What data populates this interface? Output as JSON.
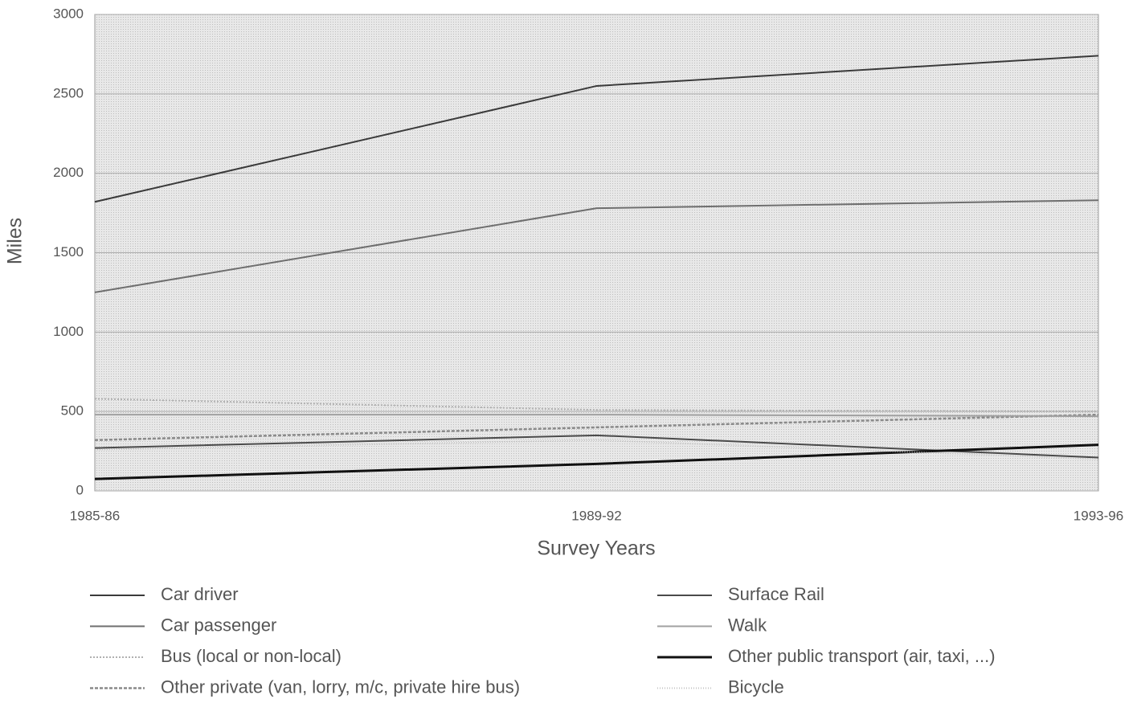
{
  "chart_data": {
    "type": "line",
    "x_label": "Survey Years",
    "y_label": "Miles",
    "categories": [
      "1985-86",
      "1989-92",
      "1993-96"
    ],
    "ylim": [
      0,
      3000
    ],
    "yticks": [
      0,
      500,
      1000,
      1500,
      2000,
      2500,
      3000
    ],
    "grid": true,
    "legend": "bottom",
    "series": [
      {
        "name": "Car  driver",
        "color": "#3a3a3a",
        "values": [
          1820,
          2550,
          2740
        ]
      },
      {
        "name": "Car  passenger",
        "color": "#6e6e6e",
        "values": [
          1250,
          1780,
          1830
        ]
      },
      {
        "name": "Bus (local or non-local)",
        "color": "#b0b0b0",
        "values": [
          580,
          510,
          500
        ]
      },
      {
        "name": "Other private (van, lorry, m/c, private hire bus)",
        "color": "#8a8a8a",
        "values": [
          320,
          400,
          480
        ]
      },
      {
        "name": "Surface Rail",
        "color": "#4a4a4a",
        "values": [
          270,
          350,
          210
        ]
      },
      {
        "name": "Walk",
        "color": "#a0a0a0",
        "values": [
          480,
          480,
          470
        ]
      },
      {
        "name": "Other public transport (air, taxi, ...)",
        "color": "#111111",
        "values": [
          75,
          170,
          290
        ]
      },
      {
        "name": "Bicycle",
        "color": "#c4c4c4",
        "values": [
          260,
          320,
          200
        ]
      }
    ]
  }
}
